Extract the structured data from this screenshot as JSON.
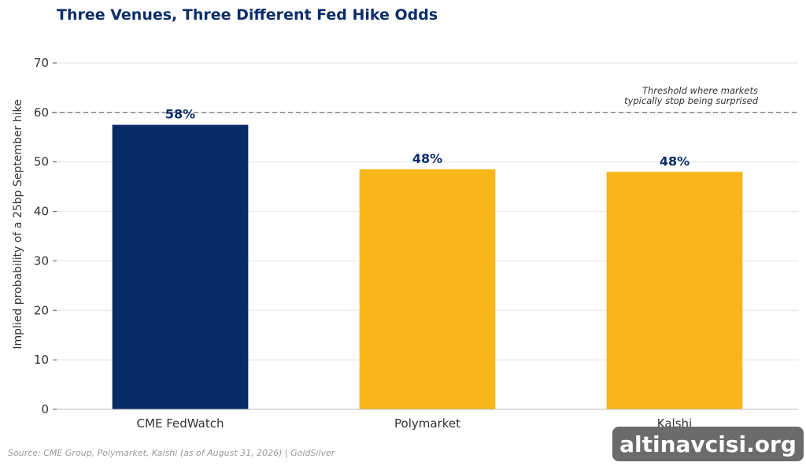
{
  "chart_data": {
    "type": "bar",
    "title": "Three Venues, Three Different Fed Hike Odds",
    "xlabel": "",
    "ylabel": "Implied probability of a 25bp September hike",
    "categories": [
      "CME FedWatch",
      "Polymarket",
      "Kalshi"
    ],
    "values": [
      57.5,
      48.5,
      48.0
    ],
    "data_labels": [
      "58%",
      "48%",
      "48%"
    ],
    "bar_colors": [
      "#062a66",
      "#f9b619",
      "#f9b619"
    ],
    "ylim": [
      0,
      70
    ],
    "yticks": [
      0,
      10,
      20,
      30,
      40,
      50,
      60,
      70
    ],
    "grid": true,
    "reference_line": {
      "value": 60,
      "style": "dashed",
      "label_lines": [
        "Threshold where markets",
        "typically stop being surprised"
      ]
    }
  },
  "source_note": "Source: CME Group, Polymarket, Kalshi (as of August 31, 2026) | GoldSilver",
  "watermark": "altinavcisi.org",
  "colors": {
    "title": "#0b2d6b",
    "grid": "#e2e2e2",
    "reference_line": "#777777",
    "watermark_bg": "#6b6b6b"
  }
}
